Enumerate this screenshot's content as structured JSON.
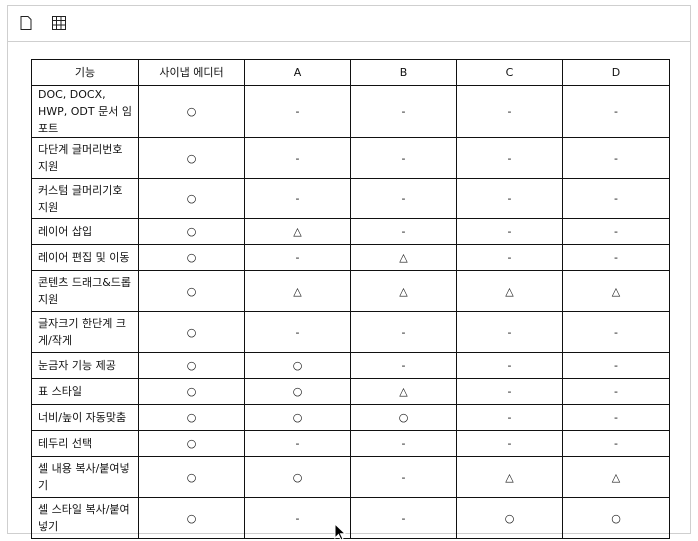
{
  "toolbar": {
    "items": [
      {
        "icon": "document-icon"
      },
      {
        "icon": "table-grid-icon"
      }
    ]
  },
  "table": {
    "headers": [
      "기능",
      "사이냅 에디터",
      "A",
      "B",
      "C",
      "D"
    ],
    "rows": [
      [
        "DOC, DOCX, HWP, ODT 문서 임포트",
        "○",
        "-",
        "-",
        "-",
        "-"
      ],
      [
        "다단계 글머리번호 지원",
        "○",
        "-",
        "-",
        "-",
        "-"
      ],
      [
        "커스텀 글머리기호 지원",
        "○",
        "-",
        "-",
        "-",
        "-"
      ],
      [
        "레이어 삽입",
        "○",
        "△",
        "-",
        "-",
        "-"
      ],
      [
        "레이어 편집 및 이동",
        "○",
        "-",
        "△",
        "-",
        "-"
      ],
      [
        "콘텐츠 드래그&드롭 지원",
        "○",
        "△",
        "△",
        "△",
        "△"
      ],
      [
        "글자크기 한단계 크게/작게",
        "○",
        "-",
        "-",
        "-",
        "-"
      ],
      [
        "눈금자 기능 제공",
        "○",
        "○",
        "-",
        "-",
        "-"
      ],
      [
        "표 스타일",
        "○",
        "○",
        "△",
        "-",
        "-"
      ],
      [
        "너비/높이 자동맞춤",
        "○",
        "○",
        "○",
        "-",
        "-"
      ],
      [
        "테두리 선택",
        "○",
        "-",
        "-",
        "-",
        "-"
      ],
      [
        "셀 내용 복사/붙여넣기",
        "○",
        "○",
        "-",
        "△",
        "△"
      ],
      [
        "셀 스타일 복사/붙여넣기",
        "○",
        "-",
        "-",
        "○",
        "○"
      ]
    ]
  }
}
